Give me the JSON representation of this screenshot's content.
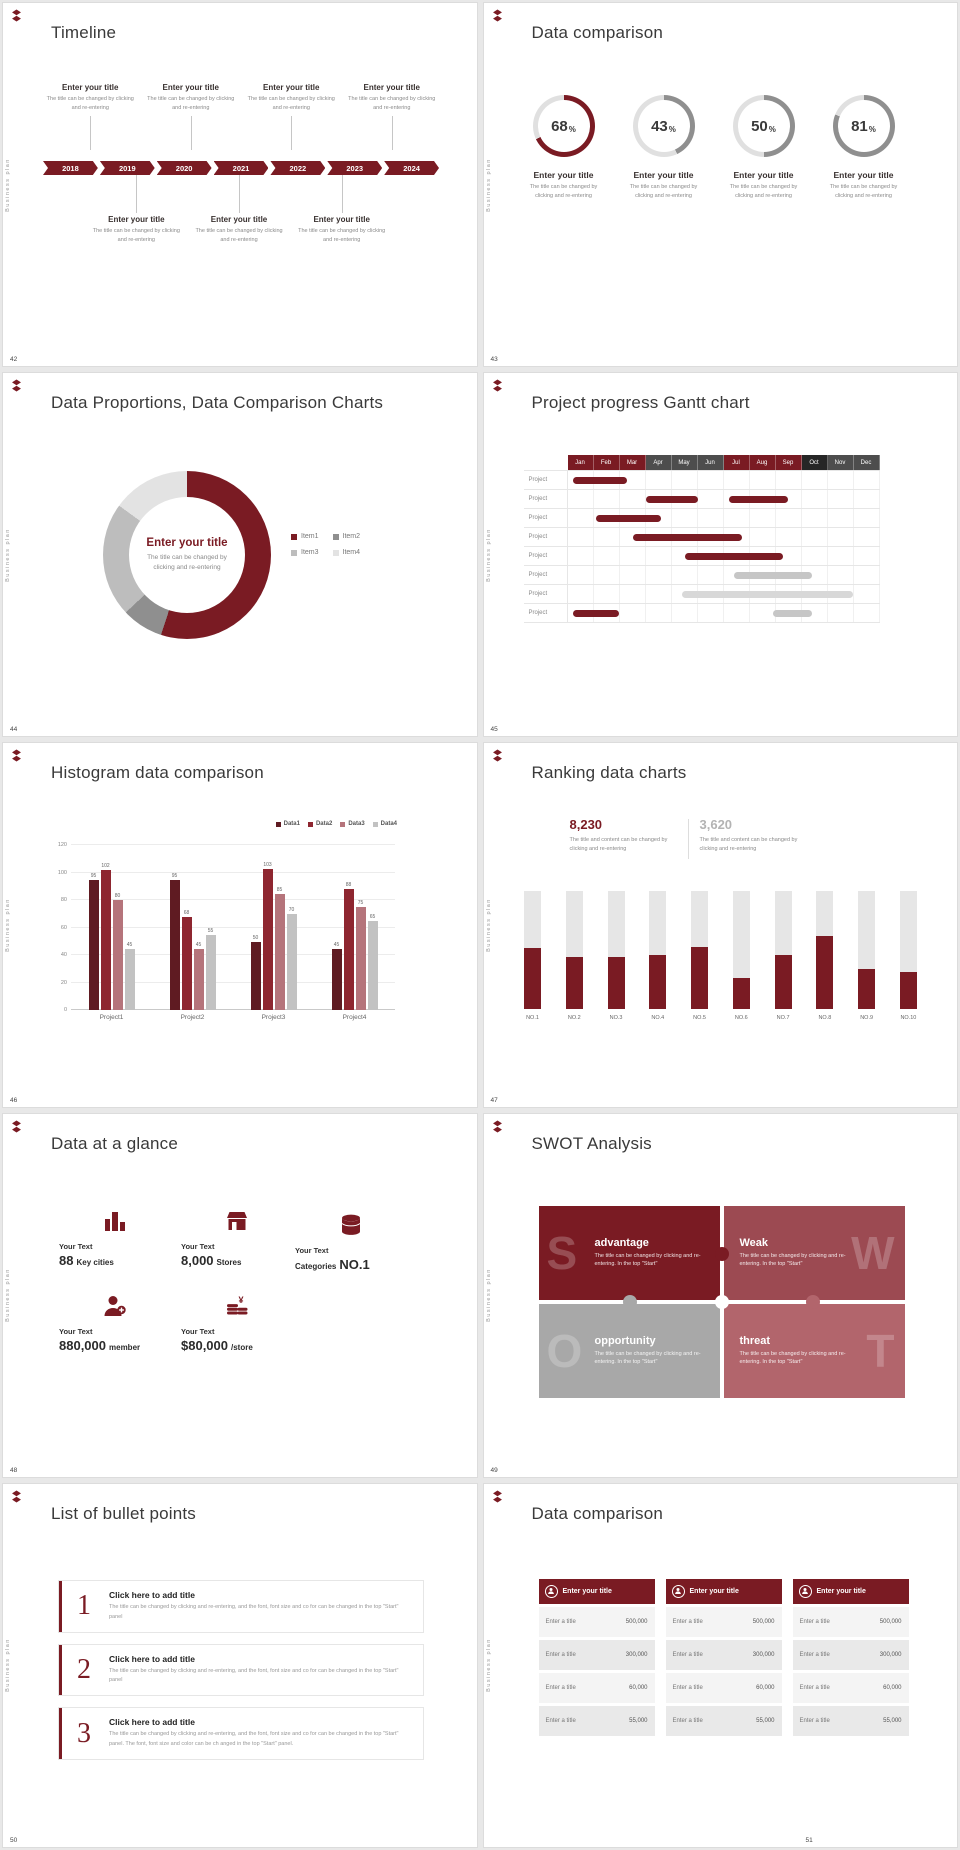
{
  "theme": {
    "accent": "#7a1b23",
    "track": "#e0e0e0",
    "ring_gray": "#8f8f8f",
    "canvas_bg": "#e8e8e8"
  },
  "common": {
    "brand": "Business plan"
  },
  "slide42": {
    "number": "42",
    "title": "Timeline",
    "entry_title": "Enter your title",
    "entry_desc": "The title can be changed by clicking and re-entering",
    "years": [
      "2018",
      "2019",
      "2020",
      "2021",
      "2022",
      "2023",
      "2024"
    ]
  },
  "slide43": {
    "number": "43",
    "title": "Data comparison",
    "item_title": "Enter your title",
    "item_desc": "The title can be changed by clicking and re-entering",
    "items": [
      {
        "value": "68",
        "unit": "%",
        "pct": 68,
        "color": "#7a1b23"
      },
      {
        "value": "43",
        "unit": "%",
        "pct": 43,
        "color": "#8f8f8f"
      },
      {
        "value": "50",
        "unit": "%",
        "pct": 50,
        "color": "#8f8f8f"
      },
      {
        "value": "81",
        "unit": "%",
        "pct": 81,
        "color": "#8f8f8f"
      }
    ]
  },
  "slide44": {
    "number": "44",
    "title": "Data Proportions, Data Comparison Charts",
    "center_title": "Enter your title",
    "center_desc": "The title can be changed by clicking and re-entering",
    "segments": [
      {
        "name": "Item1",
        "value": 55,
        "color": "#7a1b23"
      },
      {
        "name": "Item2",
        "value": 8,
        "color": "#8f8f8f"
      },
      {
        "name": "Item3",
        "value": 22,
        "color": "#bdbdbd"
      },
      {
        "name": "Item4",
        "value": 15,
        "color": "#e3e3e3"
      }
    ]
  },
  "slide45": {
    "number": "45",
    "title": "Project progress Gantt chart",
    "row_label": "Project",
    "row_count": 8,
    "months": [
      {
        "label": "Jan",
        "color": "#7a1b23"
      },
      {
        "label": "Feb",
        "color": "#7a1b23"
      },
      {
        "label": "Mar",
        "color": "#7a1b23"
      },
      {
        "label": "Apr",
        "color": "#4d4d4d"
      },
      {
        "label": "May",
        "color": "#4d4d4d"
      },
      {
        "label": "Jun",
        "color": "#4d4d4d"
      },
      {
        "label": "Jul",
        "color": "#7a1b23"
      },
      {
        "label": "Aug",
        "color": "#7a1b23"
      },
      {
        "label": "Sep",
        "color": "#7a1b23"
      },
      {
        "label": "Oct",
        "color": "#262626"
      },
      {
        "label": "Nov",
        "color": "#4d4d4d"
      },
      {
        "label": "Dec",
        "color": "#4d4d4d"
      }
    ],
    "bars": [
      {
        "row": 0,
        "start": 0.2,
        "len": 2.1,
        "color": "#7a1b23"
      },
      {
        "row": 1,
        "start": 3.0,
        "len": 2.0,
        "color": "#7a1b23"
      },
      {
        "row": 1,
        "start": 6.2,
        "len": 2.3,
        "color": "#7a1b23"
      },
      {
        "row": 2,
        "start": 1.1,
        "len": 2.5,
        "color": "#7a1b23"
      },
      {
        "row": 3,
        "start": 2.5,
        "len": 4.2,
        "color": "#7a1b23"
      },
      {
        "row": 4,
        "start": 4.5,
        "len": 3.8,
        "color": "#7a1b23"
      },
      {
        "row": 5,
        "start": 6.4,
        "len": 3.0,
        "color": "#c6c6c6"
      },
      {
        "row": 6,
        "start": 4.4,
        "len": 6.6,
        "color": "#d8d8d8"
      },
      {
        "row": 7,
        "start": 0.2,
        "len": 1.8,
        "color": "#7a1b23"
      },
      {
        "row": 7,
        "start": 7.9,
        "len": 1.5,
        "color": "#c6c6c6"
      }
    ]
  },
  "slide46": {
    "number": "46",
    "title": "Histogram data comparison",
    "y_max": 120,
    "y_ticks": [
      0,
      20,
      40,
      60,
      80,
      100,
      120
    ],
    "legend": [
      {
        "name": "Data1",
        "color": "#5f1b22"
      },
      {
        "name": "Data2",
        "color": "#8e2630"
      },
      {
        "name": "Data3",
        "color": "#b5747b"
      },
      {
        "name": "Data4",
        "color": "#c2c2c2"
      }
    ],
    "categories": [
      "Project1",
      "Project2",
      "Project3",
      "Project4"
    ],
    "values": [
      [
        95,
        102,
        80,
        45
      ],
      [
        95,
        68,
        45,
        55
      ],
      [
        50,
        103,
        85,
        70
      ],
      [
        45,
        88,
        75,
        65
      ]
    ]
  },
  "slide47": {
    "number": "47",
    "title": "Ranking data charts",
    "stat_primary": {
      "value": "8,230",
      "desc": "The title and content can be changed by clicking and re-entering"
    },
    "stat_secondary": {
      "value": "3,620",
      "desc": "The title and content can be changed by clicking and re-entering"
    },
    "bars": [
      {
        "label": "NO.1",
        "pct": 52
      },
      {
        "label": "NO.2",
        "pct": 44
      },
      {
        "label": "NO.3",
        "pct": 44
      },
      {
        "label": "NO.4",
        "pct": 46
      },
      {
        "label": "NO.5",
        "pct": 53
      },
      {
        "label": "NO.6",
        "pct": 27
      },
      {
        "label": "NO.7",
        "pct": 46
      },
      {
        "label": "NO.8",
        "pct": 62
      },
      {
        "label": "NO.9",
        "pct": 34
      },
      {
        "label": "NO.10",
        "pct": 32
      }
    ]
  },
  "slide48": {
    "number": "48",
    "title": "Data at a glance",
    "items": [
      {
        "label": "Your Text",
        "big": "88",
        "small": "Key cities",
        "icon": "buildings-icon"
      },
      {
        "label": "Your Text",
        "big": "8,000",
        "small": "Stores",
        "icon": "store-icon"
      },
      {
        "label": "Your Text",
        "big": "NO.1",
        "small": "Categories",
        "icon": "stack-icon"
      },
      {
        "label": "Your Text",
        "big": "880,000",
        "small": "member",
        "icon": "member-icon"
      },
      {
        "label": "Your Text",
        "big": "$80,000",
        "small": "/store",
        "icon": "coins-icon"
      }
    ]
  },
  "slide49": {
    "number": "49",
    "title": "SWOT Analysis",
    "tiles": [
      {
        "letter": "S",
        "word": "advantage",
        "desc": "The title can be changed by clicking and re-entering. In the top \"Start\"",
        "color": "#7a1b23"
      },
      {
        "letter": "W",
        "word": "Weak",
        "desc": "The title can be changed by clicking and re-entering. In the top \"Start\"",
        "color": "#9c4a52"
      },
      {
        "letter": "O",
        "word": "opportunity",
        "desc": "The title can be changed by clicking and re-entering. In the top \"Start\"",
        "color": "#a8a8a8"
      },
      {
        "letter": "T",
        "word": "threat",
        "desc": "The title can be changed by clicking and re-entering. In the top \"Start\"",
        "color": "#b2656c"
      }
    ]
  },
  "slide50": {
    "number": "50",
    "title": "List of bullet points",
    "items": [
      {
        "num": "1",
        "heading": "Click here to add title",
        "desc": "The title can be changed by clicking and re-entering, and the font, font size and co for can be changed in the top \"Start\" panel"
      },
      {
        "num": "2",
        "heading": "Click here to add title",
        "desc": "The title can be changed by clicking and re-entering, and the font, font size and co for can be changed in the top \"Start\" panel"
      },
      {
        "num": "3",
        "heading": "Click here to add title",
        "desc": "The title can be changed by clicking and re-entering, and the font, font size and co for can be changed in the top \"Start\" panel. The font, font size and color can be ch anged in the top \"Start\" panel."
      }
    ]
  },
  "slide51": {
    "number": "51",
    "title": "Data comparison",
    "table_header": "Enter your title",
    "rows": [
      {
        "label": "Enter a title",
        "value": "500,000"
      },
      {
        "label": "Enter a title",
        "value": "300,000"
      },
      {
        "label": "Enter a title",
        "value": "60,000"
      },
      {
        "label": "Enter a title",
        "value": "55,000"
      }
    ]
  }
}
